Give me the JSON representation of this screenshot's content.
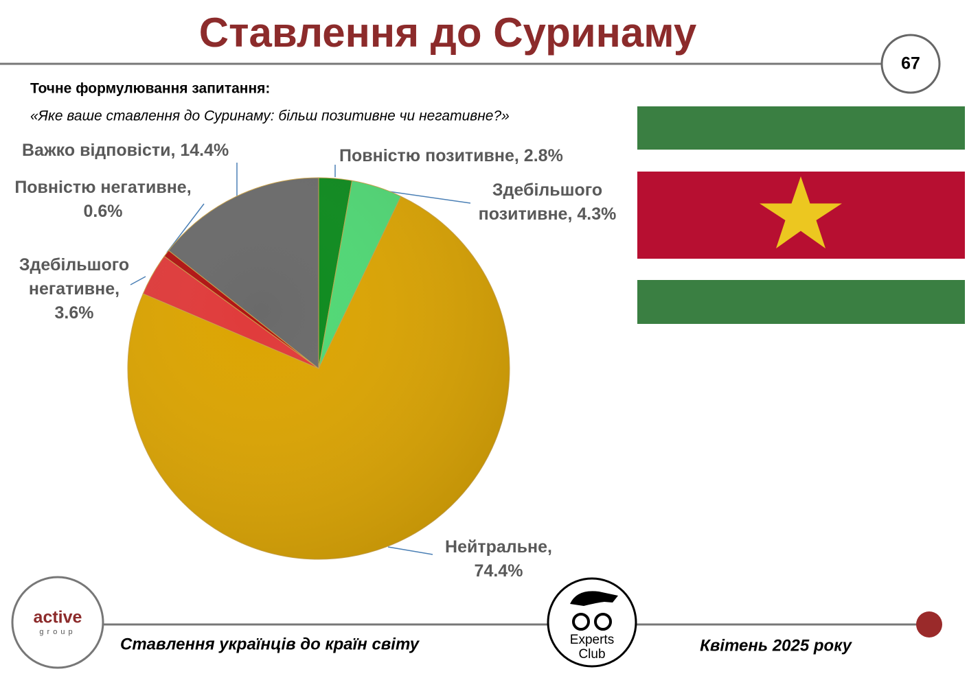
{
  "header": {
    "title": "Ставлення до Суринаму",
    "page_number": "67",
    "question_label": "Точне формулювання запитання:",
    "question_text": "«Яке ваше ставлення до Суринаму: більш позитивне чи негативне?»"
  },
  "chart_data": {
    "type": "pie",
    "values": [
      2.8,
      4.3,
      74.4,
      3.6,
      0.6,
      14.4
    ],
    "value_labels": [
      "Повністю позитивне, 2.8%",
      "Здебільшого\nпозитивне, 4.3%",
      "Нейтральне,\n74.4%",
      "Здебільшого\nнегативне,\n3.6%",
      "Повністю негативне,\n0.6%",
      "Важко відповісти, 14.4%"
    ],
    "colors": [
      "#0b8a1c",
      "#4fd874",
      "#dca400",
      "#e03a3a",
      "#b01212",
      "#6a6a6a"
    ]
  },
  "footer": {
    "logo_left_top": "active",
    "logo_left_bottom": "group",
    "survey": "Ставлення українців до країн світу",
    "logo_center_top": "Experts",
    "logo_center_bottom": "Club",
    "date": "Квітень 2025 року"
  }
}
